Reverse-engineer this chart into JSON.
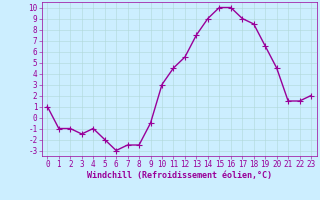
{
  "x": [
    0,
    1,
    2,
    3,
    4,
    5,
    6,
    7,
    8,
    9,
    10,
    11,
    12,
    13,
    14,
    15,
    16,
    17,
    18,
    19,
    20,
    21,
    22,
    23
  ],
  "y": [
    1,
    -1,
    -1,
    -1.5,
    -1,
    -2,
    -3,
    -2.5,
    -2.5,
    -0.5,
    3,
    4.5,
    5.5,
    7.5,
    9,
    10,
    10,
    9,
    8.5,
    6.5,
    4.5,
    1.5,
    1.5,
    2
  ],
  "line_color": "#990099",
  "marker_color": "#990099",
  "bg_color": "#cceeff",
  "grid_color": "#b0d8d8",
  "xlabel": "Windchill (Refroidissement éolien,°C)",
  "xlabel_color": "#990099",
  "tick_color": "#990099",
  "ylim": [
    -3.5,
    10.5
  ],
  "xlim": [
    -0.5,
    23.5
  ],
  "yticks": [
    -3,
    -2,
    -1,
    0,
    1,
    2,
    3,
    4,
    5,
    6,
    7,
    8,
    9,
    10
  ],
  "xticks": [
    0,
    1,
    2,
    3,
    4,
    5,
    6,
    7,
    8,
    9,
    10,
    11,
    12,
    13,
    14,
    15,
    16,
    17,
    18,
    19,
    20,
    21,
    22,
    23
  ],
  "font_size": 5.5,
  "xlabel_font_size": 6.0,
  "line_width": 1.0,
  "marker_size": 2.5
}
